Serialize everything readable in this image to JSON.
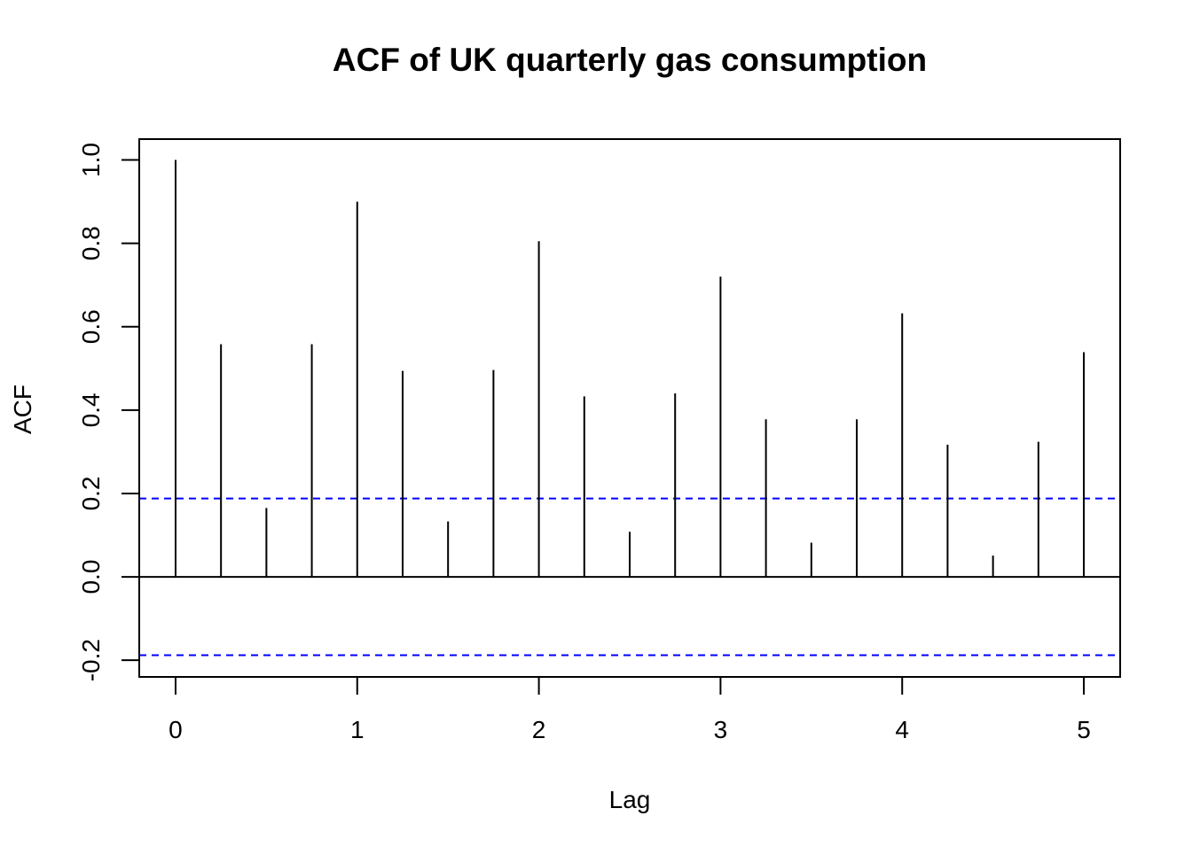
{
  "chart_data": {
    "type": "bar",
    "title": "ACF of UK quarterly gas consumption",
    "xlabel": "Lag",
    "ylabel": "ACF",
    "xlim": [
      -0.2,
      5.2
    ],
    "ylim": [
      -0.24,
      1.05
    ],
    "x_ticks": [
      0,
      1,
      2,
      3,
      4,
      5
    ],
    "x_tick_labels": [
      "0",
      "1",
      "2",
      "3",
      "4",
      "5"
    ],
    "y_ticks": [
      -0.2,
      0.0,
      0.2,
      0.4,
      0.6,
      0.8,
      1.0
    ],
    "y_tick_labels": [
      "-0.2",
      "0.0",
      "0.2",
      "0.4",
      "0.6",
      "0.8",
      "1.0"
    ],
    "lags": [
      0,
      0.25,
      0.5,
      0.75,
      1,
      1.25,
      1.5,
      1.75,
      2,
      2.25,
      2.5,
      2.75,
      3,
      3.25,
      3.5,
      3.75,
      4,
      4.25,
      4.5,
      4.75,
      5
    ],
    "acf": [
      1.0,
      0.558,
      0.165,
      0.558,
      0.9,
      0.494,
      0.133,
      0.496,
      0.805,
      0.433,
      0.108,
      0.44,
      0.72,
      0.378,
      0.082,
      0.378,
      0.632,
      0.317,
      0.051,
      0.324,
      0.539
    ],
    "confidence_bound": 0.188,
    "colors": {
      "stem": "#000000",
      "confidence": "#0000ff",
      "zero_line": "#000000"
    },
    "grid": false,
    "legend": "none"
  }
}
